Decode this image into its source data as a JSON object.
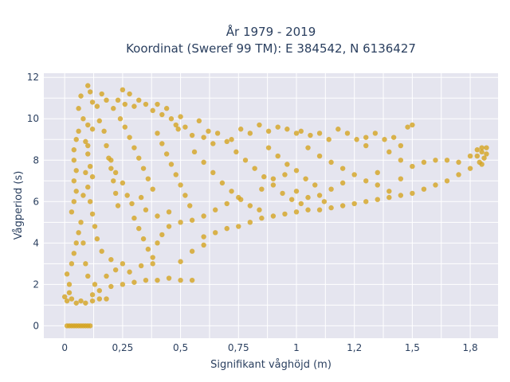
{
  "chart_data": {
    "type": "scatter",
    "title_line1": "År 1979 - 2019",
    "title_line2": "Koordinat (Sweref 99 TM): E 384542, N 6136427",
    "xlabel": "Signifikant våghöjd (m)",
    "ylabel": "Vågperiod (s)",
    "xlim": [
      -0.09,
      1.87
    ],
    "ylim": [
      -0.6,
      12.2
    ],
    "x_ticks": [
      {
        "value": 0,
        "label": "0"
      },
      {
        "value": 0.25,
        "label": "0,25"
      },
      {
        "value": 0.5,
        "label": "0,5"
      },
      {
        "value": 0.75,
        "label": "0,75"
      },
      {
        "value": 1,
        "label": "1"
      },
      {
        "value": 1.25,
        "label": "1,2"
      },
      {
        "value": 1.5,
        "label": "1,5"
      },
      {
        "value": 1.75,
        "label": "1,8"
      }
    ],
    "y_ticks": [
      {
        "value": 0,
        "label": "0"
      },
      {
        "value": 2,
        "label": "2"
      },
      {
        "value": 4,
        "label": "4"
      },
      {
        "value": 6,
        "label": "6"
      },
      {
        "value": 8,
        "label": "8"
      },
      {
        "value": 10,
        "label": "10"
      },
      {
        "value": 12,
        "label": "12"
      }
    ],
    "grid": true,
    "marker_color": "#d4a420",
    "background_color": "#e5e5ef",
    "series": [
      {
        "points": [
          [
            0.01,
            0.0
          ],
          [
            0.02,
            0.0
          ],
          [
            0.03,
            0.0
          ],
          [
            0.04,
            0.0
          ],
          [
            0.05,
            0.0
          ],
          [
            0.06,
            0.0
          ],
          [
            0.07,
            0.0
          ],
          [
            0.08,
            0.0
          ],
          [
            0.09,
            0.0
          ],
          [
            0.1,
            0.0
          ],
          [
            0.11,
            0.0
          ],
          [
            0.0,
            1.4
          ],
          [
            0.01,
            1.2
          ],
          [
            0.02,
            1.6
          ],
          [
            0.03,
            1.3
          ],
          [
            0.05,
            1.1
          ],
          [
            0.07,
            1.2
          ],
          [
            0.09,
            1.1
          ],
          [
            0.12,
            1.2
          ],
          [
            0.15,
            1.3
          ],
          [
            0.18,
            1.3
          ],
          [
            0.01,
            2.5
          ],
          [
            0.02,
            2.0
          ],
          [
            0.03,
            3.0
          ],
          [
            0.04,
            3.5
          ],
          [
            0.05,
            4.0
          ],
          [
            0.06,
            4.5
          ],
          [
            0.03,
            5.5
          ],
          [
            0.04,
            6.0
          ],
          [
            0.05,
            6.5
          ],
          [
            0.04,
            7.0
          ],
          [
            0.05,
            7.5
          ],
          [
            0.04,
            8.0
          ],
          [
            0.04,
            8.5
          ],
          [
            0.05,
            9.0
          ],
          [
            0.06,
            9.4
          ],
          [
            0.06,
            10.5
          ],
          [
            0.07,
            11.1
          ],
          [
            0.1,
            11.6
          ],
          [
            0.11,
            11.3
          ],
          [
            0.12,
            10.8
          ],
          [
            0.14,
            10.6
          ],
          [
            0.16,
            11.2
          ],
          [
            0.18,
            10.9
          ],
          [
            0.08,
            10.0
          ],
          [
            0.1,
            9.7
          ],
          [
            0.12,
            9.5
          ],
          [
            0.09,
            8.9
          ],
          [
            0.1,
            8.3
          ],
          [
            0.11,
            7.7
          ],
          [
            0.12,
            7.2
          ],
          [
            0.1,
            6.7
          ],
          [
            0.11,
            6.0
          ],
          [
            0.12,
            5.4
          ],
          [
            0.13,
            4.8
          ],
          [
            0.14,
            4.2
          ],
          [
            0.16,
            3.6
          ],
          [
            0.2,
            3.2
          ],
          [
            0.25,
            3.0
          ],
          [
            0.15,
            9.9
          ],
          [
            0.17,
            9.4
          ],
          [
            0.18,
            8.7
          ],
          [
            0.19,
            8.1
          ],
          [
            0.2,
            7.6
          ],
          [
            0.21,
            7.0
          ],
          [
            0.22,
            6.4
          ],
          [
            0.23,
            5.8
          ],
          [
            0.21,
            10.5
          ],
          [
            0.23,
            10.9
          ],
          [
            0.25,
            11.4
          ],
          [
            0.26,
            10.7
          ],
          [
            0.28,
            11.2
          ],
          [
            0.3,
            10.6
          ],
          [
            0.32,
            10.9
          ],
          [
            0.35,
            10.7
          ],
          [
            0.24,
            10.0
          ],
          [
            0.26,
            9.6
          ],
          [
            0.28,
            9.1
          ],
          [
            0.3,
            8.6
          ],
          [
            0.32,
            8.1
          ],
          [
            0.34,
            7.6
          ],
          [
            0.36,
            7.1
          ],
          [
            0.38,
            6.6
          ],
          [
            0.38,
            10.4
          ],
          [
            0.4,
            10.7
          ],
          [
            0.42,
            10.2
          ],
          [
            0.44,
            10.5
          ],
          [
            0.46,
            10.0
          ],
          [
            0.48,
            9.7
          ],
          [
            0.5,
            10.1
          ],
          [
            0.49,
            9.5
          ],
          [
            0.4,
            9.3
          ],
          [
            0.42,
            8.8
          ],
          [
            0.44,
            8.3
          ],
          [
            0.46,
            7.8
          ],
          [
            0.48,
            7.3
          ],
          [
            0.5,
            6.8
          ],
          [
            0.52,
            6.3
          ],
          [
            0.54,
            5.8
          ],
          [
            0.3,
            5.2
          ],
          [
            0.32,
            4.7
          ],
          [
            0.34,
            4.2
          ],
          [
            0.36,
            3.7
          ],
          [
            0.38,
            3.3
          ],
          [
            0.4,
            4.0
          ],
          [
            0.42,
            4.4
          ],
          [
            0.45,
            4.8
          ],
          [
            0.12,
            1.5
          ],
          [
            0.15,
            1.7
          ],
          [
            0.2,
            1.9
          ],
          [
            0.25,
            2.0
          ],
          [
            0.3,
            2.1
          ],
          [
            0.35,
            2.2
          ],
          [
            0.4,
            2.2
          ],
          [
            0.45,
            2.3
          ],
          [
            0.5,
            2.2
          ],
          [
            0.55,
            2.2
          ],
          [
            0.18,
            2.4
          ],
          [
            0.22,
            2.7
          ],
          [
            0.28,
            2.6
          ],
          [
            0.33,
            2.9
          ],
          [
            0.38,
            3.0
          ],
          [
            0.5,
            3.1
          ],
          [
            0.55,
            3.6
          ],
          [
            0.6,
            3.9
          ],
          [
            0.52,
            9.6
          ],
          [
            0.55,
            9.2
          ],
          [
            0.58,
            9.9
          ],
          [
            0.6,
            9.1
          ],
          [
            0.62,
            9.4
          ],
          [
            0.64,
            8.8
          ],
          [
            0.66,
            9.3
          ],
          [
            0.7,
            8.9
          ],
          [
            0.56,
            8.4
          ],
          [
            0.6,
            7.9
          ],
          [
            0.64,
            7.4
          ],
          [
            0.68,
            6.9
          ],
          [
            0.72,
            6.5
          ],
          [
            0.76,
            6.1
          ],
          [
            0.8,
            5.8
          ],
          [
            0.84,
            5.6
          ],
          [
            0.6,
            4.3
          ],
          [
            0.65,
            4.5
          ],
          [
            0.7,
            4.7
          ],
          [
            0.75,
            4.8
          ],
          [
            0.8,
            5.0
          ],
          [
            0.85,
            5.2
          ],
          [
            0.9,
            5.3
          ],
          [
            0.95,
            5.4
          ],
          [
            0.72,
            9.0
          ],
          [
            0.76,
            9.5
          ],
          [
            0.8,
            9.3
          ],
          [
            0.84,
            9.7
          ],
          [
            0.88,
            9.4
          ],
          [
            0.92,
            9.6
          ],
          [
            0.96,
            9.5
          ],
          [
            1.0,
            9.3
          ],
          [
            0.74,
            8.4
          ],
          [
            0.78,
            8.0
          ],
          [
            0.82,
            7.6
          ],
          [
            0.86,
            7.2
          ],
          [
            0.9,
            6.8
          ],
          [
            0.94,
            6.4
          ],
          [
            0.98,
            6.1
          ],
          [
            1.02,
            5.9
          ],
          [
            0.88,
            8.6
          ],
          [
            0.92,
            8.2
          ],
          [
            0.96,
            7.8
          ],
          [
            1.0,
            7.5
          ],
          [
            1.04,
            7.1
          ],
          [
            1.08,
            6.8
          ],
          [
            1.1,
            6.3
          ],
          [
            1.12,
            6.0
          ],
          [
            1.0,
            5.5
          ],
          [
            1.05,
            5.6
          ],
          [
            1.1,
            5.6
          ],
          [
            1.15,
            5.7
          ],
          [
            1.2,
            5.8
          ],
          [
            1.25,
            5.9
          ],
          [
            1.3,
            6.0
          ],
          [
            1.35,
            6.1
          ],
          [
            1.02,
            9.4
          ],
          [
            1.06,
            9.2
          ],
          [
            1.1,
            9.3
          ],
          [
            1.14,
            9.0
          ],
          [
            1.18,
            9.5
          ],
          [
            1.22,
            9.3
          ],
          [
            1.26,
            9.0
          ],
          [
            1.3,
            9.1
          ],
          [
            1.05,
            8.6
          ],
          [
            1.1,
            8.2
          ],
          [
            1.15,
            7.9
          ],
          [
            1.2,
            7.6
          ],
          [
            1.25,
            7.3
          ],
          [
            1.3,
            7.0
          ],
          [
            1.35,
            6.8
          ],
          [
            1.4,
            6.5
          ],
          [
            1.3,
            8.7
          ],
          [
            1.34,
            9.3
          ],
          [
            1.38,
            9.0
          ],
          [
            1.4,
            8.4
          ],
          [
            1.42,
            9.1
          ],
          [
            1.45,
            8.7
          ],
          [
            1.48,
            9.6
          ],
          [
            1.5,
            9.7
          ],
          [
            1.4,
            6.2
          ],
          [
            1.45,
            6.3
          ],
          [
            1.5,
            6.4
          ],
          [
            1.55,
            6.6
          ],
          [
            1.6,
            6.8
          ],
          [
            1.65,
            7.0
          ],
          [
            1.7,
            7.3
          ],
          [
            1.75,
            7.6
          ],
          [
            1.45,
            8.0
          ],
          [
            1.5,
            7.7
          ],
          [
            1.55,
            7.9
          ],
          [
            1.6,
            8.0
          ],
          [
            1.65,
            8.0
          ],
          [
            1.7,
            7.9
          ],
          [
            1.75,
            8.2
          ],
          [
            1.78,
            8.5
          ],
          [
            1.8,
            8.4
          ],
          [
            1.81,
            8.1
          ],
          [
            1.82,
            8.6
          ],
          [
            1.79,
            7.9
          ],
          [
            1.8,
            7.8
          ],
          [
            1.78,
            8.2
          ],
          [
            1.82,
            8.3
          ],
          [
            1.8,
            8.6
          ],
          [
            0.2,
            8.0
          ],
          [
            0.22,
            7.4
          ],
          [
            0.25,
            6.9
          ],
          [
            0.27,
            6.3
          ],
          [
            0.29,
            5.9
          ],
          [
            0.33,
            6.2
          ],
          [
            0.35,
            5.6
          ],
          [
            0.4,
            5.3
          ],
          [
            0.45,
            5.5
          ],
          [
            0.5,
            5.0
          ],
          [
            0.55,
            5.1
          ],
          [
            0.6,
            5.3
          ],
          [
            0.65,
            5.6
          ],
          [
            0.7,
            5.9
          ],
          [
            0.75,
            6.2
          ],
          [
            0.85,
            6.6
          ],
          [
            0.9,
            7.1
          ],
          [
            0.95,
            7.3
          ],
          [
            1.0,
            6.5
          ],
          [
            1.05,
            6.2
          ],
          [
            1.15,
            6.6
          ],
          [
            1.2,
            6.9
          ],
          [
            1.35,
            7.4
          ],
          [
            1.45,
            7.1
          ],
          [
            0.08,
            4.0
          ],
          [
            0.09,
            3.0
          ],
          [
            0.1,
            2.4
          ],
          [
            0.13,
            2.0
          ],
          [
            0.07,
            5.0
          ],
          [
            0.08,
            6.3
          ],
          [
            0.09,
            7.4
          ],
          [
            0.1,
            8.7
          ]
        ]
      }
    ]
  }
}
